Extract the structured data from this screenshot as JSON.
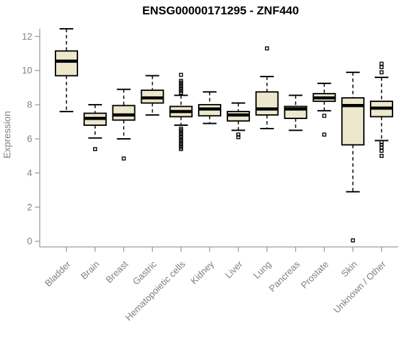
{
  "title": "ENSG00000171295 - ZNF440",
  "chart_data": {
    "type": "boxplot",
    "title": "ENSG00000171295 - ZNF440",
    "xlabel": "",
    "ylabel": "Expression",
    "ylim": [
      0,
      12.6
    ],
    "y_ticks": [
      0,
      2,
      4,
      6,
      8,
      10,
      12
    ],
    "grid": false,
    "legend": "none",
    "colors": {
      "box_fill": "#EDE8CC",
      "box_stroke": "#000000",
      "median": "#000000",
      "whisker": "#000000",
      "outlier": "#000000",
      "axis": "#999999",
      "tick_text": "#808080",
      "title_text": "#000000",
      "background": "#ffffff"
    },
    "categories": [
      "Bladder",
      "Brain",
      "Breast",
      "Gastric",
      "Hematopoietic cells",
      "Kidney",
      "Liver",
      "Lung",
      "Pancreas",
      "Prostate",
      "Skin",
      "Unknown / Other"
    ],
    "boxes": [
      {
        "category": "Bladder",
        "whisker_low": 7.6,
        "q1": 9.7,
        "median": 10.55,
        "q3": 11.15,
        "whisker_high": 12.45,
        "outliers": []
      },
      {
        "category": "Brain",
        "whisker_low": 6.05,
        "q1": 6.8,
        "median": 7.2,
        "q3": 7.5,
        "whisker_high": 8.0,
        "outliers": [
          5.4
        ]
      },
      {
        "category": "Breast",
        "whisker_low": 6.0,
        "q1": 7.1,
        "median": 7.4,
        "q3": 7.95,
        "whisker_high": 8.9,
        "outliers": [
          4.85
        ]
      },
      {
        "category": "Gastric",
        "whisker_low": 7.4,
        "q1": 8.1,
        "median": 8.4,
        "q3": 8.85,
        "whisker_high": 9.7,
        "outliers": []
      },
      {
        "category": "Hematopoietic cells",
        "whisker_low": 6.8,
        "q1": 7.3,
        "median": 7.6,
        "q3": 7.9,
        "whisker_high": 8.55,
        "outliers": [
          9.75,
          9.4,
          9.3,
          9.2,
          9.1,
          9.0,
          8.9,
          8.8,
          8.7,
          6.6,
          6.5,
          6.4,
          6.3,
          6.2,
          6.1,
          6.0,
          5.9,
          5.8,
          5.7,
          5.6,
          5.5,
          5.4
        ]
      },
      {
        "category": "Kidney",
        "whisker_low": 6.9,
        "q1": 7.35,
        "median": 7.75,
        "q3": 8.0,
        "whisker_high": 8.75,
        "outliers": []
      },
      {
        "category": "Liver",
        "whisker_low": 6.5,
        "q1": 7.05,
        "median": 7.4,
        "q3": 7.6,
        "whisker_high": 8.1,
        "outliers": [
          6.25,
          6.1
        ]
      },
      {
        "category": "Lung",
        "whisker_low": 6.6,
        "q1": 7.4,
        "median": 7.75,
        "q3": 8.75,
        "whisker_high": 9.65,
        "outliers": [
          11.3
        ]
      },
      {
        "category": "Pancreas",
        "whisker_low": 6.5,
        "q1": 7.2,
        "median": 7.75,
        "q3": 7.9,
        "whisker_high": 8.55,
        "outliers": []
      },
      {
        "category": "Prostate",
        "whisker_low": 7.65,
        "q1": 8.2,
        "median": 8.4,
        "q3": 8.65,
        "whisker_high": 9.25,
        "outliers": [
          7.35,
          6.25
        ]
      },
      {
        "category": "Skin",
        "whisker_low": 2.9,
        "q1": 5.65,
        "median": 7.95,
        "q3": 8.4,
        "whisker_high": 9.9,
        "outliers": [
          0.05
        ]
      },
      {
        "category": "Unknown / Other",
        "whisker_low": 5.9,
        "q1": 7.3,
        "median": 7.8,
        "q3": 8.2,
        "whisker_high": 9.6,
        "outliers": [
          10.4,
          10.2,
          9.9,
          5.8,
          5.65,
          5.5,
          5.3,
          5.0
        ]
      }
    ]
  }
}
